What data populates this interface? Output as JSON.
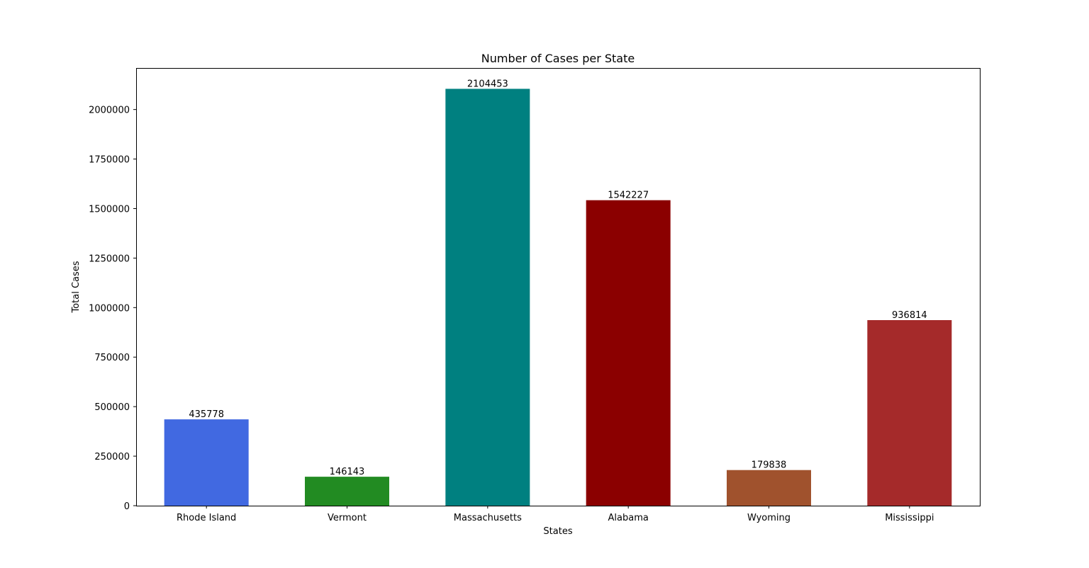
{
  "chart_data": {
    "type": "bar",
    "title": "Number of Cases per State",
    "xlabel": "States",
    "ylabel": "Total Cases",
    "categories": [
      "Rhode Island",
      "Vermont",
      "Massachusetts",
      "Alabama",
      "Wyoming",
      "Mississippi"
    ],
    "values": [
      435778,
      146143,
      2104453,
      1542227,
      179838,
      936814
    ],
    "data_labels": [
      "435778",
      "146143",
      "2104453",
      "1542227",
      "179838",
      "936814"
    ],
    "colors": [
      "#4169E1",
      "#228B22",
      "#008080",
      "#8B0000",
      "#A0522D",
      "#A52A2A"
    ],
    "yticks": [
      0,
      250000,
      500000,
      750000,
      1000000,
      1250000,
      1500000,
      1750000,
      2000000
    ],
    "ytick_labels": [
      "0",
      "250000",
      "500000",
      "750000",
      "1000000",
      "1250000",
      "1500000",
      "1750000",
      "2000000"
    ],
    "ylim": [
      0,
      2209676
    ],
    "grid": false,
    "legend": "none"
  }
}
